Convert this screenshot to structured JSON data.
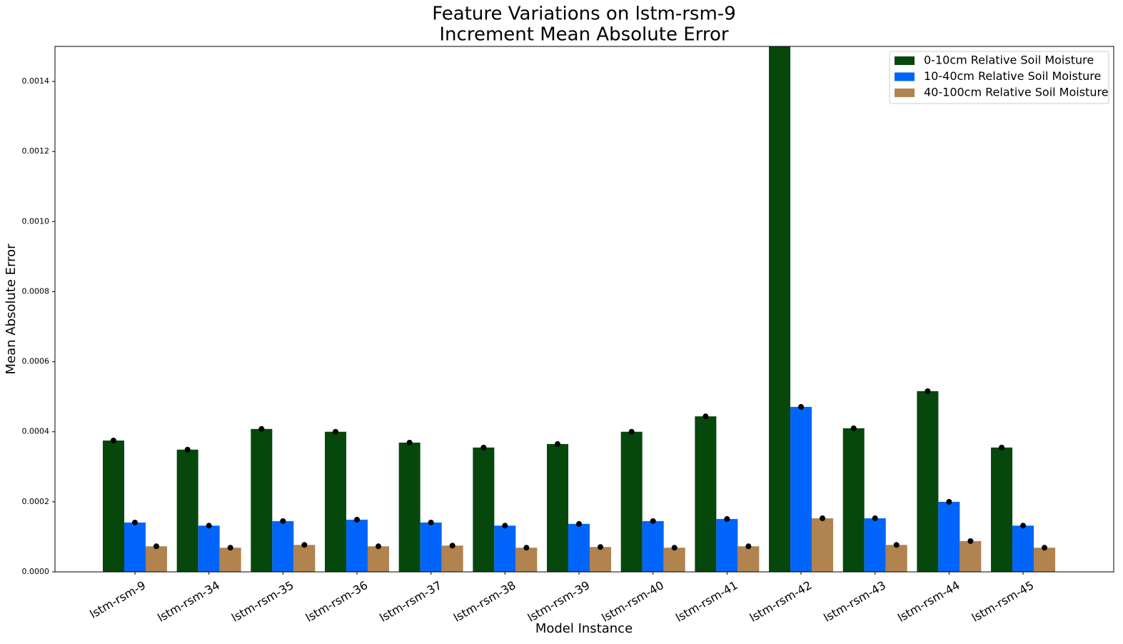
{
  "chart_data": {
    "type": "bar",
    "title": [
      "Feature Variations on lstm-rsm-9",
      "Increment Mean Absolute Error"
    ],
    "x_label": "Model Instance",
    "y_label": "Mean Absolute Error",
    "categories": [
      "lstm-rsm-9",
      "lstm-rsm-34",
      "lstm-rsm-35",
      "lstm-rsm-36",
      "lstm-rsm-37",
      "lstm-rsm-38",
      "lstm-rsm-39",
      "lstm-rsm-40",
      "lstm-rsm-41",
      "lstm-rsm-42",
      "lstm-rsm-43",
      "lstm-rsm-44",
      "lstm-rsm-45"
    ],
    "series": [
      {
        "name": "0-10cm Relative Soil Moisture",
        "color": "#06470c",
        "values": [
          0.000375,
          0.000349,
          0.000408,
          0.0004,
          0.000369,
          0.000355,
          0.000365,
          0.0004,
          0.000444,
          0.0016,
          0.00041,
          0.000516,
          0.000355
        ]
      },
      {
        "name": "10-40cm Relative Soil Moisture",
        "color": "#0165fc",
        "values": [
          0.000141,
          0.000132,
          0.000145,
          0.000149,
          0.000141,
          0.000132,
          0.000137,
          0.000145,
          0.000151,
          0.000471,
          0.000153,
          0.0002,
          0.000132
        ]
      },
      {
        "name": "40-100cm Relative Soil Moisture",
        "color": "#b0834f",
        "values": [
          7.3e-05,
          6.9e-05,
          7.7e-05,
          7.3e-05,
          7.5e-05,
          6.9e-05,
          7.1e-05,
          6.9e-05,
          7.3e-05,
          0.000153,
          7.7e-05,
          8.8e-05,
          6.9e-05
        ]
      }
    ],
    "ylim": [
      0,
      0.0015
    ],
    "yticks": [
      {
        "value": 0,
        "label": "0.0000"
      },
      {
        "value": 0.0002,
        "label": "0.0002"
      },
      {
        "value": 0.0004,
        "label": "0.0004"
      },
      {
        "value": 0.0006,
        "label": "0.0006"
      },
      {
        "value": 0.0008,
        "label": "0.0008"
      },
      {
        "value": 0.001,
        "label": "0.0010"
      },
      {
        "value": 0.0012,
        "label": "0.0012"
      },
      {
        "value": 0.0014,
        "label": "0.0014"
      }
    ],
    "legend": "upper right",
    "markers": true
  }
}
